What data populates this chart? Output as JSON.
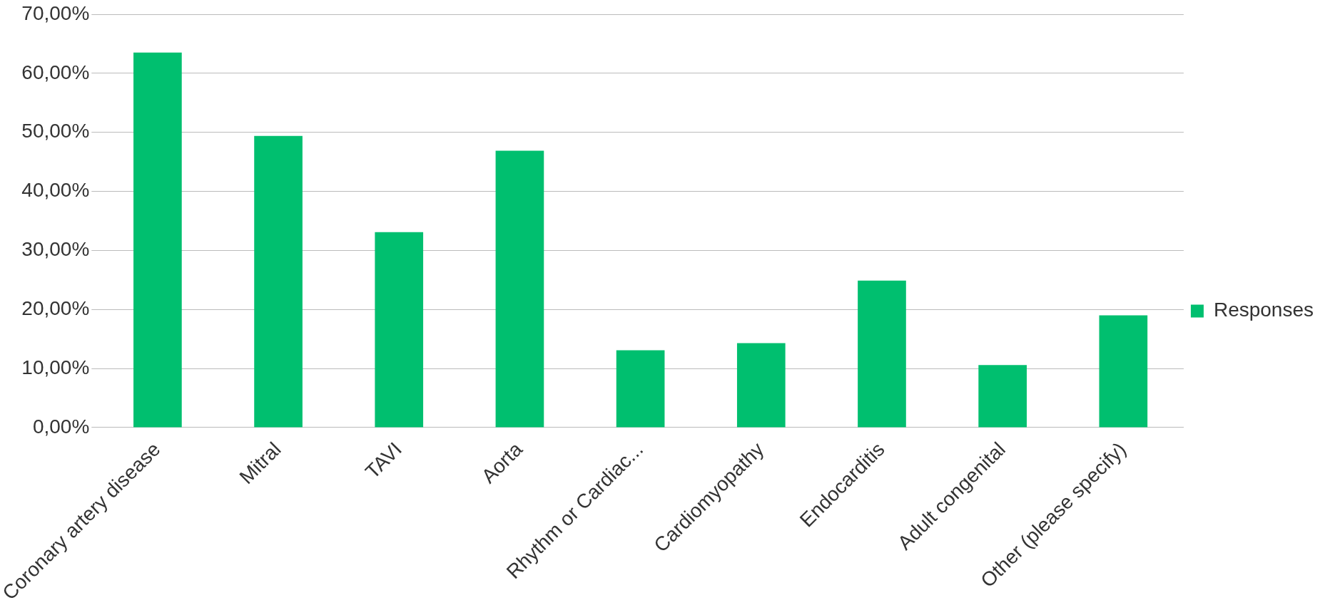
{
  "chart_data": {
    "type": "bar",
    "categories": [
      "Coronary artery disease",
      "Mitral",
      "TAVI",
      "Aorta",
      "Rhythm or Cardiac...",
      "Cardiomyopathy",
      "Endocarditis",
      "Adult congenital",
      "Other (please specify)"
    ],
    "series": [
      {
        "name": "Responses",
        "color": "#00bf6f",
        "values": [
          63.5,
          49.4,
          33.1,
          46.9,
          13.1,
          14.3,
          24.9,
          10.6,
          19.0
        ]
      }
    ],
    "ylim": [
      0,
      70
    ],
    "yticks": [
      {
        "value": 0,
        "label": "0,00%"
      },
      {
        "value": 10,
        "label": "10,00%"
      },
      {
        "value": 20,
        "label": "20,00%"
      },
      {
        "value": 30,
        "label": "30,00%"
      },
      {
        "value": 40,
        "label": "40,00%"
      },
      {
        "value": 50,
        "label": "50,00%"
      },
      {
        "value": 60,
        "label": "60,00%"
      },
      {
        "value": 70,
        "label": "70,00%"
      }
    ],
    "grid": "y",
    "legend": "right"
  }
}
